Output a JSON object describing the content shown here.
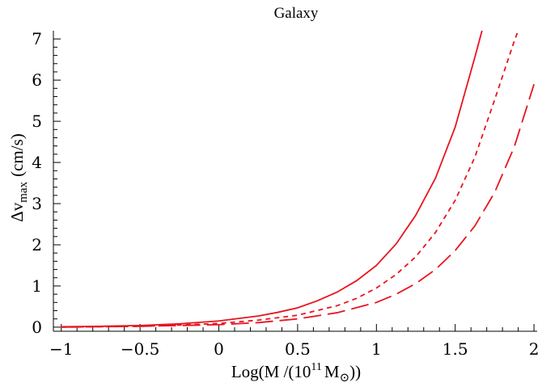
{
  "chart_data": {
    "type": "line",
    "title": "Galaxy",
    "xlabel": {
      "text": "Log(M /(10",
      "sup": "11",
      "mid": "M",
      "sub": "⊙",
      "tail": "))"
    },
    "ylabel": {
      "main": "Δv",
      "sub": "max",
      "unit": "(cm/s)"
    },
    "xlim": [
      -1.05,
      2.02
    ],
    "ylim": [
      -0.1,
      7.2
    ],
    "xticks": [
      -1,
      -0.5,
      0,
      0.5,
      1,
      1.5,
      2
    ],
    "xtick_labels": [
      "−1",
      "−0.5",
      "0",
      "0.5",
      "1",
      "1.5",
      "2"
    ],
    "yticks": [
      0,
      1,
      2,
      3,
      4,
      5,
      6,
      7
    ],
    "ytick_labels": [
      "0",
      "1",
      "2",
      "3",
      "4",
      "5",
      "6",
      "7"
    ],
    "line_color": "#e8141e",
    "grid": false,
    "series": [
      {
        "style": "solid",
        "x": [
          -1,
          -0.75,
          -0.5,
          -0.25,
          0,
          0.25,
          0.375,
          0.5,
          0.625,
          0.75,
          0.875,
          1,
          1.125,
          1.25,
          1.375,
          1.5,
          1.625,
          1.67
        ],
        "y": [
          0.01,
          0.02,
          0.04,
          0.08,
          0.15,
          0.27,
          0.36,
          0.47,
          0.64,
          0.85,
          1.13,
          1.5,
          2.02,
          2.72,
          3.62,
          4.86,
          6.56,
          7.2
        ]
      },
      {
        "style": "dashed",
        "x": [
          -1,
          -0.75,
          -0.5,
          -0.25,
          0,
          0.25,
          0.5,
          0.75,
          0.875,
          1,
          1.125,
          1.25,
          1.375,
          1.5,
          1.625,
          1.75,
          1.875,
          1.9
        ],
        "y": [
          0.0,
          0.01,
          0.02,
          0.05,
          0.09,
          0.17,
          0.29,
          0.52,
          0.7,
          0.95,
          1.28,
          1.71,
          2.3,
          3.08,
          4.13,
          5.52,
          6.95,
          7.2
        ]
      },
      {
        "style": "longdash",
        "x": [
          -1,
          -0.75,
          -0.5,
          -0.25,
          0,
          0.25,
          0.5,
          0.75,
          1,
          1.125,
          1.25,
          1.375,
          1.5,
          1.625,
          1.75,
          1.875,
          2.0
        ],
        "y": [
          0.0,
          0.01,
          0.02,
          0.04,
          0.06,
          0.11,
          0.2,
          0.35,
          0.6,
          0.8,
          1.06,
          1.4,
          1.86,
          2.46,
          3.27,
          4.38,
          5.9
        ]
      }
    ]
  }
}
